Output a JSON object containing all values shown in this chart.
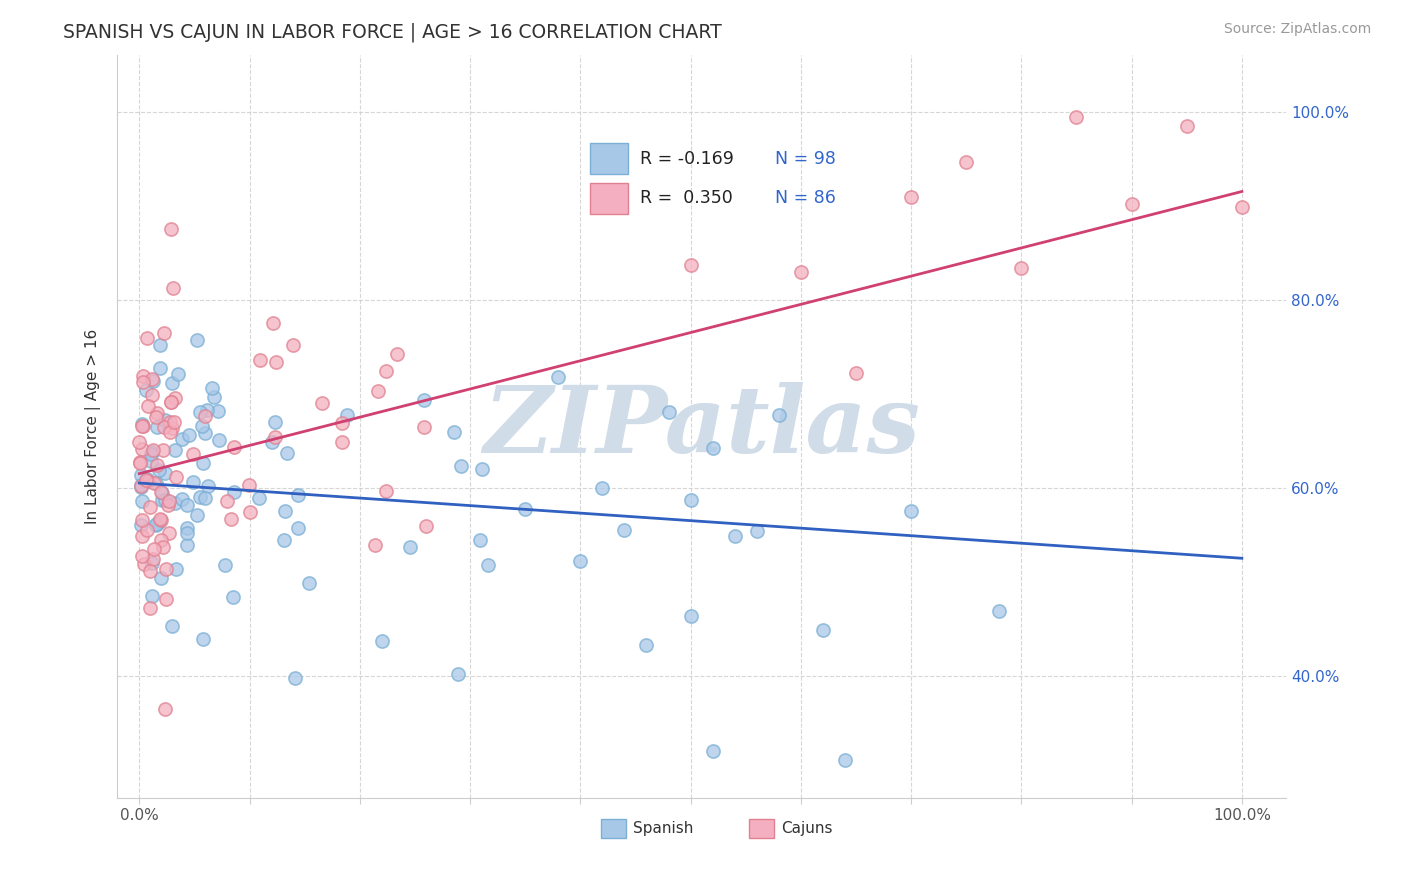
{
  "title": "SPANISH VS CAJUN IN LABOR FORCE | AGE > 16 CORRELATION CHART",
  "ylabel": "In Labor Force | Age > 16",
  "source_text": "Source: ZipAtlas.com",
  "xlim": [
    -0.02,
    1.04
  ],
  "ylim": [
    0.27,
    1.06
  ],
  "xtick_positions": [
    0.0,
    0.1,
    0.2,
    0.3,
    0.4,
    0.5,
    0.6,
    0.7,
    0.8,
    0.9,
    1.0
  ],
  "ytick_positions": [
    0.4,
    0.6,
    0.8,
    1.0
  ],
  "ytick_labels": [
    "40.0%",
    "60.0%",
    "80.0%",
    "100.0%"
  ],
  "spanish_face_color": "#a8c8e8",
  "spanish_edge_color": "#7bafd4",
  "cajun_face_color": "#f4b0c0",
  "cajun_edge_color": "#e08090",
  "spanish_line_color": "#3060c0",
  "cajun_line_color": "#d04070",
  "watermark_color": "#d0dce8",
  "watermark_text": "ZIPatlas",
  "grid_color": "#cccccc",
  "title_color": "#333333",
  "tick_color": "#555555",
  "source_color": "#999999",
  "sp_line_start_y": 0.605,
  "sp_line_end_y": 0.525,
  "cj_line_start_y": 0.615,
  "cj_line_end_y": 0.915,
  "legend_r1": "R = -0.169",
  "legend_n1": "N = 98",
  "legend_r2": "R =  0.350",
  "legend_n2": "N = 86",
  "bottom_label1": "Spanish",
  "bottom_label2": "Cajuns"
}
